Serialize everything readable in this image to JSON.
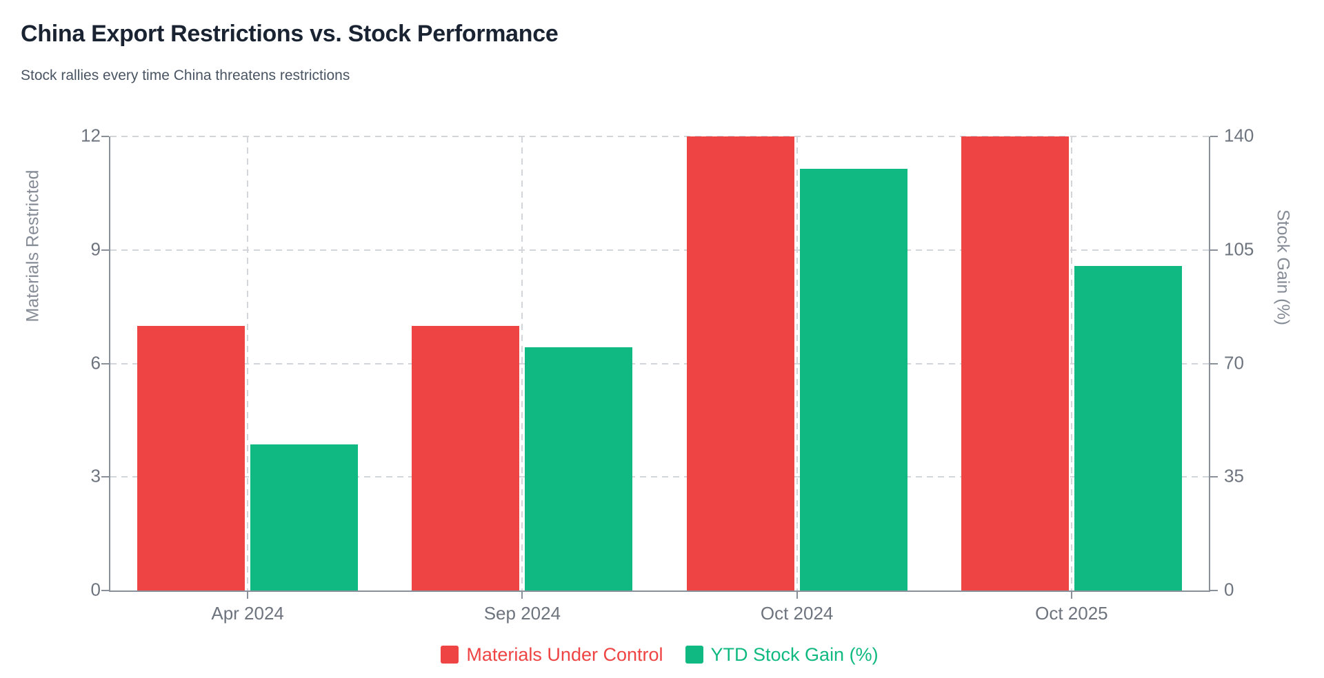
{
  "page": {
    "title": "China Export Restrictions vs. Stock Performance",
    "subtitle": "Stock rallies every time China threatens restrictions"
  },
  "colors": {
    "background": "#ffffff",
    "title": "#1a2332",
    "subtitle": "#4a5563",
    "axis_line": "#8a9099",
    "gridline": "#d2d6db",
    "tick_text": "#6e747e",
    "axis_title_text": "#868c96",
    "series_red": "#ef4444",
    "series_green": "#10b981"
  },
  "chart_data": {
    "type": "bar",
    "categories": [
      "Apr 2024",
      "Sep 2024",
      "Oct 2024",
      "Oct 2025"
    ],
    "series": [
      {
        "name": "Materials Under Control",
        "axis": "left",
        "color": "#ef4444",
        "values": [
          7,
          7,
          12,
          12
        ]
      },
      {
        "name": "YTD Stock Gain (%)",
        "axis": "right",
        "color": "#10b981",
        "values": [
          45,
          75,
          130,
          100
        ]
      }
    ],
    "title": "China Export Restrictions vs. Stock Performance",
    "subtitle": "Stock rallies every time China threatens restrictions",
    "left_axis": {
      "label": "Materials Restricted",
      "ticks": [
        0,
        3,
        6,
        9,
        12
      ],
      "range": [
        0,
        12
      ]
    },
    "right_axis": {
      "label": "Stock Gain (%)",
      "ticks": [
        0,
        35,
        70,
        105,
        140
      ],
      "range": [
        0,
        140
      ]
    },
    "grid": true,
    "grid_style": "dashed",
    "legend_position": "bottom"
  }
}
